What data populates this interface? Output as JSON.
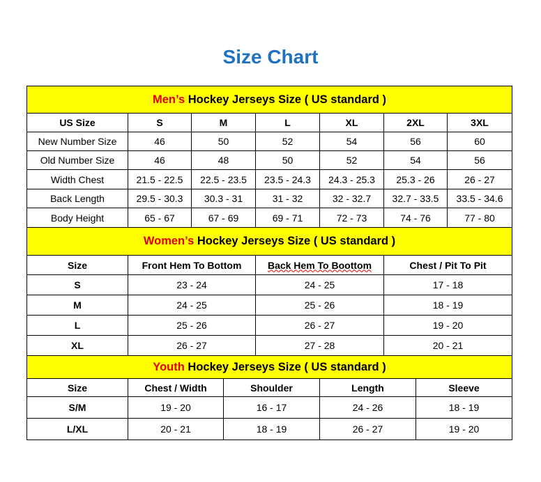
{
  "title": "Size Chart",
  "colors": {
    "header_bg": "#ffff00",
    "accent_red": "#e00000",
    "title_blue": "#1f72c0"
  },
  "men": {
    "heading_red": "Men’s",
    "heading_rest": " Hockey Jerseys Size ( US standard )",
    "columns": [
      "US Size",
      "S",
      "M",
      "L",
      "XL",
      "2XL",
      "3XL"
    ],
    "rows": [
      [
        "New Number Size",
        "46",
        "50",
        "52",
        "54",
        "56",
        "60"
      ],
      [
        "Old Number Size",
        "46",
        "48",
        "50",
        "52",
        "54",
        "56"
      ],
      [
        "Width Chest",
        "21.5 - 22.5",
        "22.5 - 23.5",
        "23.5 - 24.3",
        "24.3 - 25.3",
        "25.3 - 26",
        "26 - 27"
      ],
      [
        "Back Length",
        "29.5 - 30.3",
        "30.3 - 31",
        "31 - 32",
        "32 - 32.7",
        "32.7 - 33.5",
        "33.5 - 34.6"
      ],
      [
        "Body Height",
        "65 - 67",
        "67 - 69",
        "69 - 71",
        "72 - 73",
        "74 - 76",
        "77 - 80"
      ]
    ]
  },
  "women": {
    "heading_red": "Women’s",
    "heading_rest": " Hockey Jerseys Size ( US standard )",
    "columns": [
      "Size",
      "Front Hem To Bottom",
      "Back Hem To Boottom",
      "Chest / Pit To Pit"
    ],
    "rows": [
      [
        "S",
        "23 - 24",
        "24 - 25",
        "17 - 18"
      ],
      [
        "M",
        "24 - 25",
        "25 - 26",
        "18 - 19"
      ],
      [
        "L",
        "25 - 26",
        "26 - 27",
        "19 - 20"
      ],
      [
        "XL",
        "26 - 27",
        "27 - 28",
        "20 - 21"
      ]
    ]
  },
  "youth": {
    "heading_red": "Youth",
    "heading_rest": " Hockey Jerseys Size ( US standard )",
    "columns": [
      "Size",
      "Chest / Width",
      "Shoulder",
      "Length",
      "Sleeve"
    ],
    "rows": [
      [
        "S/M",
        "19 - 20",
        "16 - 17",
        "24 - 26",
        "18 - 19"
      ],
      [
        "L/XL",
        "20 - 21",
        "18 - 19",
        "26 - 27",
        "19 - 20"
      ]
    ]
  }
}
